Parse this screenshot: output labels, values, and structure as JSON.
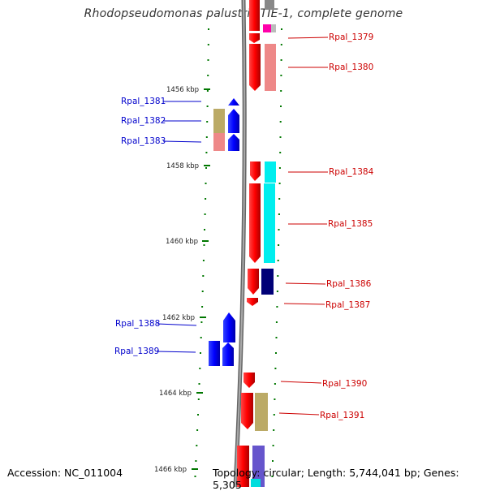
{
  "title": "Rhodopseudomonas palustris TIE-1, complete genome",
  "footer": {
    "accession": "Accession: NC_011004",
    "summary": "Topology: circular; Length: 5,744,041 bp; Genes: 5,305"
  },
  "scale_labels": [
    "1456 kbp",
    "1458 kbp",
    "1460 kbp",
    "1462 kbp",
    "1464 kbp",
    "1466 kbp"
  ],
  "colors": {
    "forward_gene": "#ff0000",
    "reverse_gene": "#0000ff",
    "backbone": "#808080",
    "tick": "#007700",
    "label_forward": "#cc0000",
    "label_reverse": "#0000cc"
  },
  "forward_genes": [
    "Rpal_1379",
    "Rpal_1380",
    "Rpal_1384",
    "Rpal_1385",
    "Rpal_1386",
    "Rpal_1387",
    "Rpal_1390",
    "Rpal_1391"
  ],
  "reverse_genes": [
    "Rpal_1381",
    "Rpal_1382",
    "Rpal_1383",
    "Rpal_1388",
    "Rpal_1389"
  ]
}
